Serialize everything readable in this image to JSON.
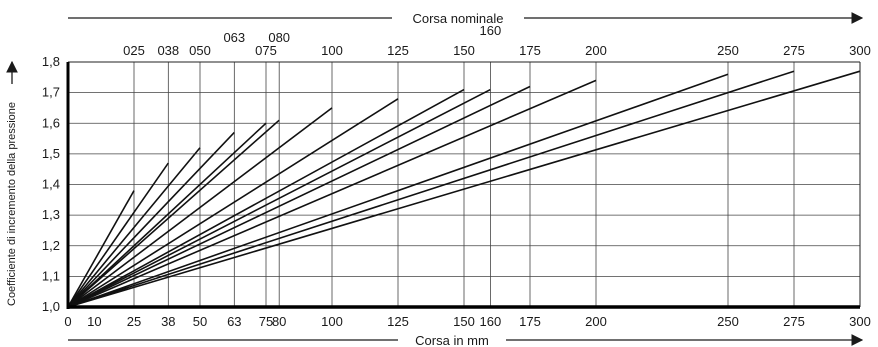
{
  "chart_data": {
    "type": "line",
    "top_axis_title": "Corsa nominale",
    "x_axis_title": "Corsa in mm",
    "y_axis_title": "Coefficiente di incremento della pressione",
    "x_range": [
      0,
      300
    ],
    "y_range": [
      1.0,
      1.8
    ],
    "x_ticks": [
      {
        "value": 0,
        "label": "0"
      },
      {
        "value": 10,
        "label": "10"
      },
      {
        "value": 25,
        "label": "25"
      },
      {
        "value": 38,
        "label": "38"
      },
      {
        "value": 50,
        "label": "50"
      },
      {
        "value": 63,
        "label": "63"
      },
      {
        "value": 75,
        "label": "75"
      },
      {
        "value": 80,
        "label": "80"
      },
      {
        "value": 100,
        "label": "100"
      },
      {
        "value": 125,
        "label": "125"
      },
      {
        "value": 150,
        "label": "150"
      },
      {
        "value": 160,
        "label": "160"
      },
      {
        "value": 175,
        "label": "175"
      },
      {
        "value": 200,
        "label": "200"
      },
      {
        "value": 250,
        "label": "250"
      },
      {
        "value": 275,
        "label": "275"
      },
      {
        "value": 300,
        "label": "300"
      }
    ],
    "y_ticks": [
      {
        "value": 1.0,
        "label": "1,0"
      },
      {
        "value": 1.1,
        "label": "1,1"
      },
      {
        "value": 1.2,
        "label": "1,2"
      },
      {
        "value": 1.3,
        "label": "1,3"
      },
      {
        "value": 1.4,
        "label": "1,4"
      },
      {
        "value": 1.5,
        "label": "1,5"
      },
      {
        "value": 1.6,
        "label": "1,6"
      },
      {
        "value": 1.7,
        "label": "1,7"
      },
      {
        "value": 1.8,
        "label": "1,8"
      }
    ],
    "grid": true,
    "series": [
      {
        "name": "025",
        "label_row": "low",
        "x": [
          0,
          25
        ],
        "y": [
          1.0,
          1.38
        ]
      },
      {
        "name": "038",
        "label_row": "low",
        "x": [
          0,
          38
        ],
        "y": [
          1.0,
          1.47
        ]
      },
      {
        "name": "050",
        "label_row": "low",
        "x": [
          0,
          50
        ],
        "y": [
          1.0,
          1.52
        ]
      },
      {
        "name": "063",
        "label_row": "high",
        "x": [
          0,
          63
        ],
        "y": [
          1.0,
          1.57
        ]
      },
      {
        "name": "075",
        "label_row": "low",
        "x": [
          0,
          75
        ],
        "y": [
          1.0,
          1.6
        ]
      },
      {
        "name": "080",
        "label_row": "high",
        "x": [
          0,
          80
        ],
        "y": [
          1.0,
          1.61
        ]
      },
      {
        "name": "100",
        "label_row": "low",
        "x": [
          0,
          100
        ],
        "y": [
          1.0,
          1.65
        ]
      },
      {
        "name": "125",
        "label_row": "low",
        "x": [
          0,
          125
        ],
        "y": [
          1.0,
          1.68
        ]
      },
      {
        "name": "150",
        "label_row": "low",
        "x": [
          0,
          150
        ],
        "y": [
          1.0,
          1.71
        ]
      },
      {
        "name": "160",
        "label_row": "top",
        "x": [
          0,
          160
        ],
        "y": [
          1.0,
          1.71
        ]
      },
      {
        "name": "175",
        "label_row": "low",
        "x": [
          0,
          175
        ],
        "y": [
          1.0,
          1.72
        ]
      },
      {
        "name": "200",
        "label_row": "low",
        "x": [
          0,
          200
        ],
        "y": [
          1.0,
          1.74
        ]
      },
      {
        "name": "250",
        "label_row": "low",
        "x": [
          0,
          250
        ],
        "y": [
          1.0,
          1.76
        ]
      },
      {
        "name": "275",
        "label_row": "low",
        "x": [
          0,
          275
        ],
        "y": [
          1.0,
          1.77
        ]
      },
      {
        "name": "300",
        "label_row": "low",
        "x": [
          0,
          300
        ],
        "y": [
          1.0,
          1.77
        ]
      }
    ]
  }
}
